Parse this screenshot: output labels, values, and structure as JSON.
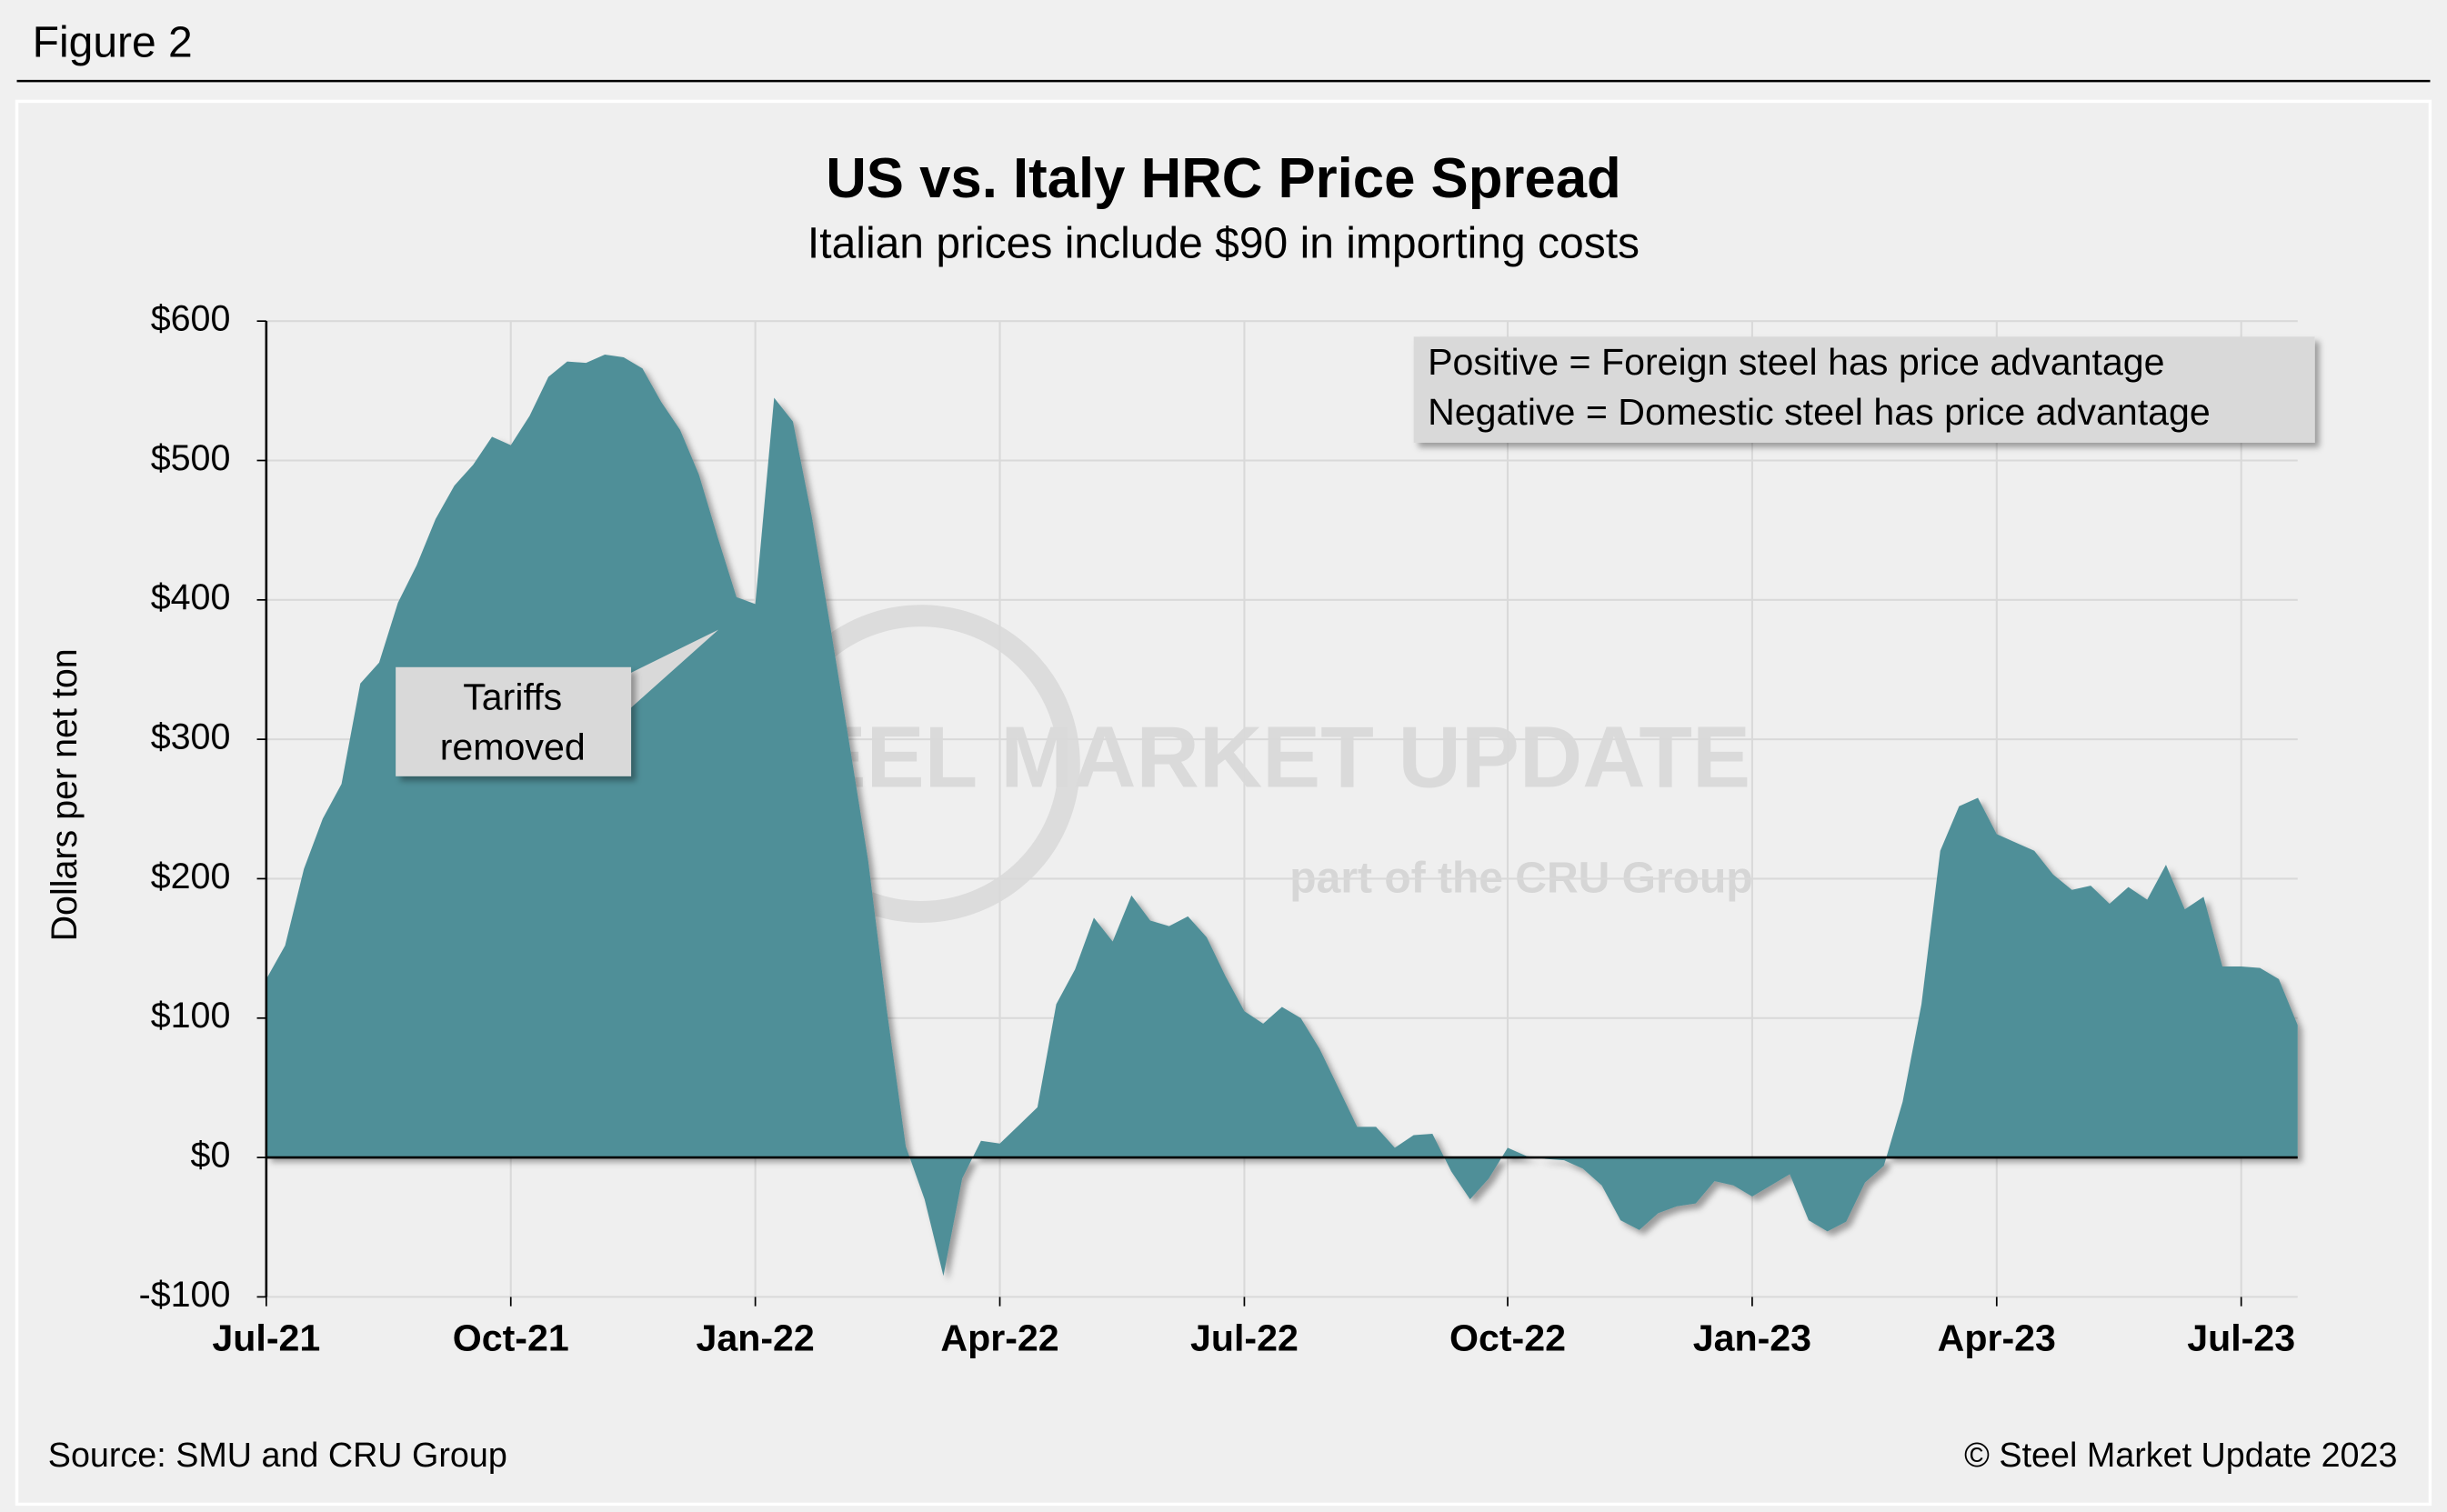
{
  "figure_label": "Figure 2",
  "source": "Source: SMU and CRU Group",
  "copyright": "© Steel Market Update 2023",
  "watermark": [
    "STEEL MARKET UPDATE",
    "part of the CRU Group"
  ],
  "chart_data": {
    "type": "area",
    "title": "US vs. Italy HRC Price Spread",
    "subtitle": "Italian prices include $90 in importing costs",
    "y_label": "Dollars per net ton",
    "note": [
      "Positive = Foreign steel has price advantage",
      "Negative = Domestic steel has price advantage"
    ],
    "annotation": [
      "Tariffs",
      "removed"
    ],
    "color": "#508f98",
    "categories": [
      "Jul-21",
      null,
      null,
      null,
      null,
      null,
      null,
      null,
      null,
      null,
      null,
      null,
      null,
      "Oct-21",
      null,
      null,
      null,
      null,
      null,
      null,
      null,
      null,
      null,
      null,
      null,
      null,
      "Jan-22",
      null,
      null,
      null,
      null,
      null,
      null,
      null,
      null,
      null,
      null,
      null,
      null,
      "Apr-22",
      null,
      null,
      null,
      null,
      null,
      null,
      null,
      null,
      null,
      null,
      null,
      null,
      "Jul-22",
      null,
      null,
      null,
      null,
      null,
      null,
      null,
      null,
      null,
      null,
      null,
      null,
      null,
      "Oct-22",
      null,
      null,
      null,
      null,
      null,
      null,
      null,
      null,
      null,
      null,
      null,
      null,
      "Jan-23",
      null,
      null,
      null,
      null,
      null,
      null,
      null,
      null,
      null,
      null,
      null,
      null,
      "Apr-23",
      null,
      null,
      null,
      null,
      null,
      null,
      null,
      null,
      null,
      null,
      null,
      null,
      "Jul-23",
      null,
      null,
      null
    ],
    "values": [
      128,
      152,
      207,
      243,
      268,
      340,
      355,
      398,
      425,
      458,
      482,
      497,
      517,
      511,
      532,
      560,
      571,
      570,
      576,
      574,
      566,
      542,
      522,
      490,
      445,
      402,
      397,
      545,
      528,
      460,
      380,
      297,
      213,
      105,
      8,
      -30,
      -85,
      -15,
      12,
      10,
      23,
      36,
      110,
      135,
      172,
      155,
      188,
      170,
      166,
      173,
      158,
      130,
      105,
      96,
      108,
      100,
      78,
      50,
      22,
      22,
      7,
      16,
      17,
      -10,
      -30,
      -15,
      7,
      1,
      -1,
      -2,
      -8,
      -20,
      -45,
      -52,
      -40,
      -35,
      -33,
      -17,
      -20,
      -28,
      -20,
      -12,
      -45,
      -53,
      -46,
      -18,
      -6,
      40,
      110,
      220,
      252,
      258,
      232,
      226,
      220,
      203,
      192,
      195,
      182,
      194,
      185,
      210,
      178,
      187,
      137,
      137,
      136,
      128,
      95
    ],
    "ylim": [
      -100,
      600
    ],
    "yticks": [
      {
        "value": -100,
        "label": "-$100"
      },
      {
        "value": 0,
        "label": "$0"
      },
      {
        "value": 100,
        "label": "$100"
      },
      {
        "value": 200,
        "label": "$200"
      },
      {
        "value": 300,
        "label": "$300"
      },
      {
        "value": 400,
        "label": "$400"
      },
      {
        "value": 500,
        "label": "$500"
      },
      {
        "value": 600,
        "label": "$600"
      }
    ],
    "grid": true
  }
}
